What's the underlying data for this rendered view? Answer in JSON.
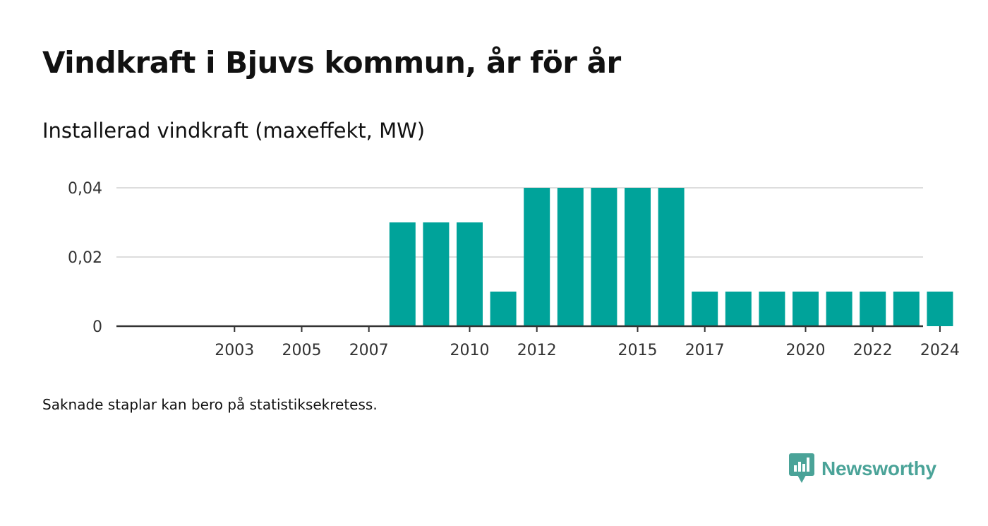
{
  "header": {
    "title": "Vindkraft i Bjuvs kommun, år för år",
    "subtitle": "Installerad vindkraft (maxeffekt, MW)"
  },
  "footnote": "Saknade staplar kan bero på statistiksekretess.",
  "brand": {
    "name": "Newsworthy",
    "icon": "bar-chart-speech-bubble-icon",
    "color": "#4aa398"
  },
  "chart_data": {
    "type": "bar",
    "title": "Vindkraft i Bjuvs kommun, år för år",
    "subtitle": "Installerad vindkraft (maxeffekt, MW)",
    "xlabel": "",
    "ylabel": "",
    "bar_color": "#00a39a",
    "grid": true,
    "ylim": [
      0,
      0.04
    ],
    "y_ticks": [
      0,
      0.02,
      0.04
    ],
    "y_tick_labels": [
      "0",
      "0,02",
      "0,04"
    ],
    "x_ticks": [
      2003,
      2005,
      2007,
      2010,
      2012,
      2015,
      2017,
      2020,
      2022,
      2024
    ],
    "x_tick_labels": [
      "2003",
      "2005",
      "2007",
      "2010",
      "2012",
      "2015",
      "2017",
      "2020",
      "2022",
      "2024"
    ],
    "x_range": [
      2000,
      2024
    ],
    "categories": [
      2008,
      2009,
      2010,
      2011,
      2012,
      2013,
      2014,
      2015,
      2016,
      2017,
      2018,
      2019,
      2020,
      2021,
      2022,
      2023,
      2024
    ],
    "values": [
      0.03,
      0.03,
      0.03,
      0.01,
      0.04,
      0.04,
      0.04,
      0.04,
      0.04,
      0.01,
      0.01,
      0.01,
      0.01,
      0.01,
      0.01,
      0.01,
      0.01
    ]
  }
}
